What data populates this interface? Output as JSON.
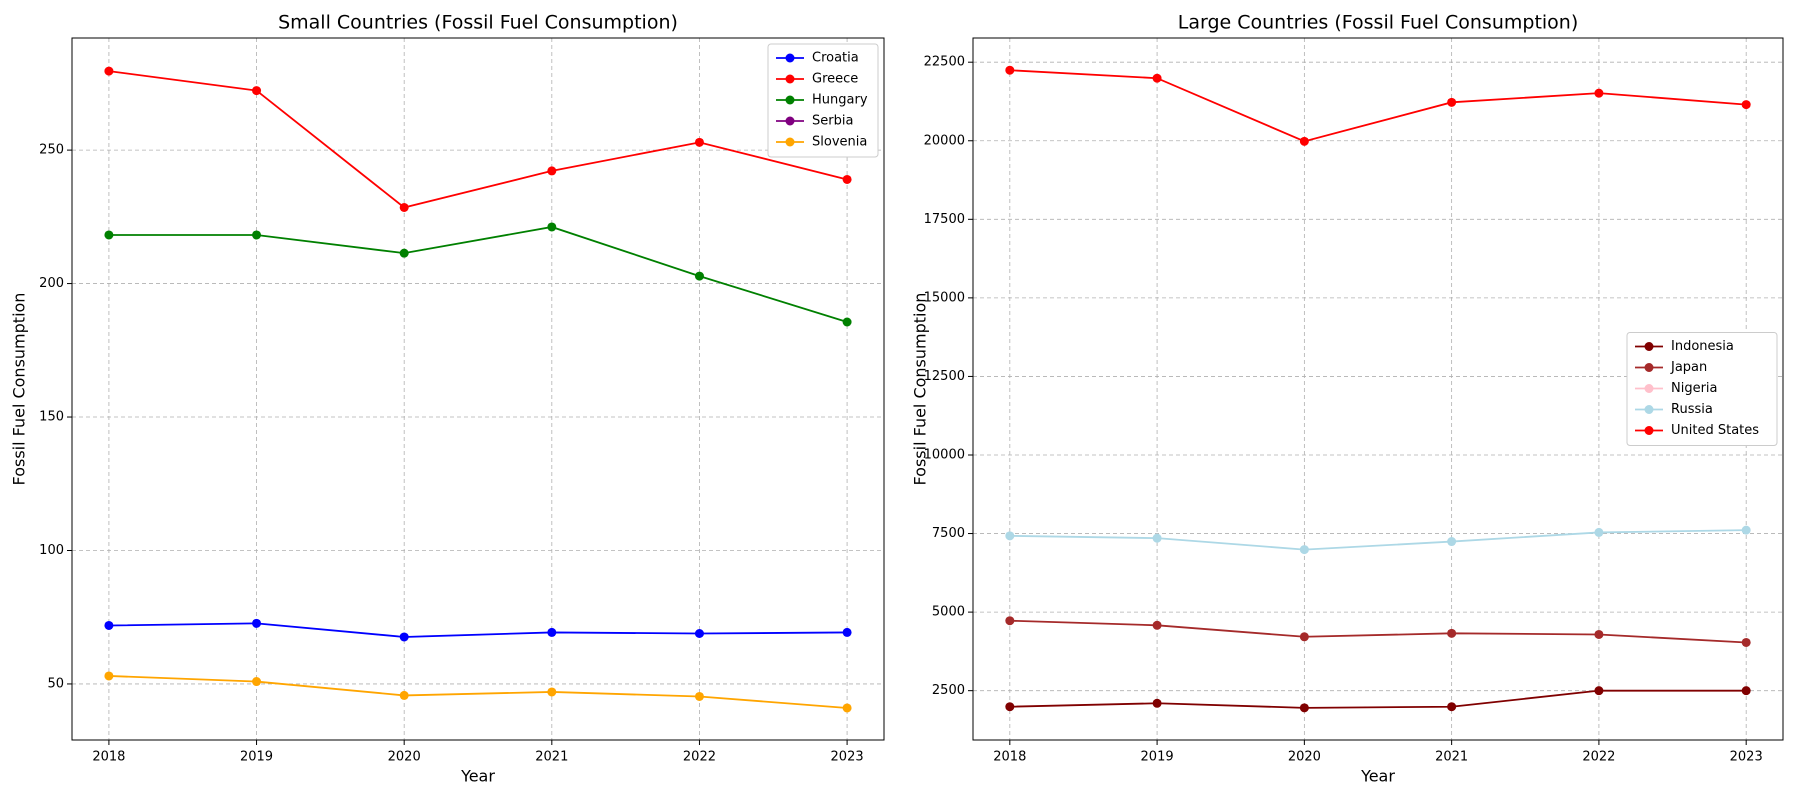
{
  "chart_data": [
    {
      "type": "line",
      "title": "Small Countries (Fossil Fuel Consumption)",
      "x_label": "Year",
      "y_label": "Fossil Fuel Consumption",
      "x": [
        2018,
        2019,
        2020,
        2021,
        2022,
        2023
      ],
      "xlim": [
        2017.75,
        2023.25
      ],
      "xticks": [
        2018,
        2019,
        2020,
        2021,
        2022,
        2023
      ],
      "ylim": [
        29,
        292
      ],
      "yticks": [
        50,
        100,
        150,
        200,
        250
      ],
      "grid": true,
      "legend": "upper right",
      "series": [
        {
          "name": "Croatia",
          "color": "#0000ff",
          "values": [
            71.9,
            72.7,
            67.6,
            69.3,
            68.9,
            69.3
          ]
        },
        {
          "name": "Greece",
          "color": "#ff0000",
          "values": [
            279.6,
            272.3,
            228.5,
            242.2,
            252.9,
            239.0
          ]
        },
        {
          "name": "Hungary",
          "color": "#008000",
          "values": [
            218.2,
            218.2,
            211.4,
            221.2,
            202.8,
            185.6
          ]
        },
        {
          "name": "Serbia",
          "color": "#800080",
          "values": [
            null,
            null,
            null,
            null,
            null,
            null
          ]
        },
        {
          "name": "Slovenia",
          "color": "#ffa500",
          "values": [
            53.0,
            50.9,
            45.7,
            47.0,
            45.3,
            41.0
          ]
        }
      ]
    },
    {
      "type": "line",
      "title": "Large Countries (Fossil Fuel Consumption)",
      "x_label": "Year",
      "y_label": "Fossil Fuel Consumption",
      "x": [
        2018,
        2019,
        2020,
        2021,
        2022,
        2023
      ],
      "xlim": [
        2017.75,
        2023.25
      ],
      "xticks": [
        2018,
        2019,
        2020,
        2021,
        2022,
        2023
      ],
      "ylim": [
        930,
        23270
      ],
      "yticks": [
        2500,
        5000,
        7500,
        10000,
        12500,
        15000,
        17500,
        20000,
        22500
      ],
      "grid": true,
      "legend": "center right",
      "series": [
        {
          "name": "Indonesia",
          "color": "#800000",
          "values": [
            1989,
            2099,
            1953,
            1989,
            2500,
            2500
          ]
        },
        {
          "name": "Japan",
          "color": "#a52a2a",
          "values": [
            4726,
            4580,
            4215,
            4325,
            4288,
            4033
          ]
        },
        {
          "name": "Nigeria",
          "color": "#ffc0cb",
          "values": [
            null,
            null,
            null,
            null,
            null,
            null
          ]
        },
        {
          "name": "Russia",
          "color": "#add8e6",
          "values": [
            7427,
            7354,
            6989,
            7245,
            7536,
            7609
          ]
        },
        {
          "name": "United States",
          "color": "#ff0000",
          "values": [
            22245,
            21990,
            19982,
            21223,
            21515,
            21150
          ]
        }
      ]
    }
  ]
}
